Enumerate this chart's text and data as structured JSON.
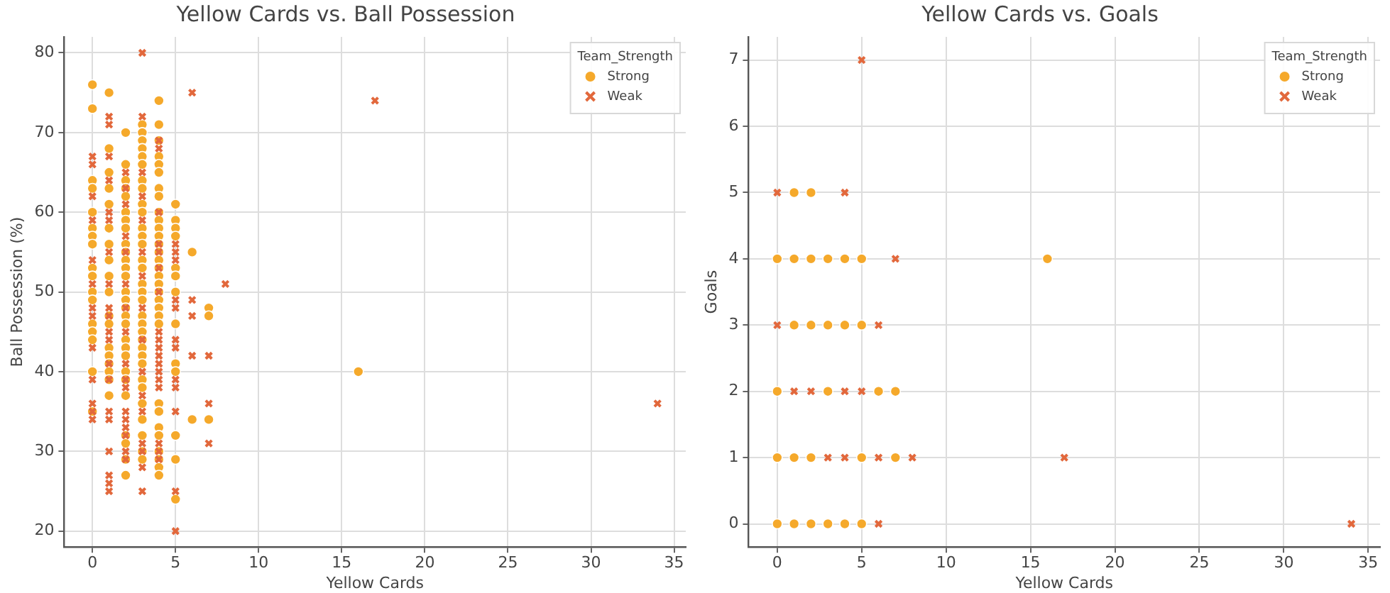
{
  "chart_data": [
    {
      "type": "scatter",
      "title": "Yellow Cards vs. Ball Possession",
      "xlabel": "Yellow Cards",
      "ylabel": "Ball Possession (%)",
      "legend_title": "Team_Strength",
      "legend": "top right",
      "grid": true,
      "xlim": [
        -1.7,
        35.7
      ],
      "xticks": [
        0,
        5,
        10,
        15,
        20,
        25,
        30,
        35
      ],
      "ylim": [
        18,
        82
      ],
      "yticks": [
        20,
        30,
        40,
        50,
        60,
        70,
        80
      ],
      "series": [
        {
          "name": "Strong",
          "color": "#f5a92b",
          "marker": "circle",
          "x": [
            0,
            0,
            0,
            0,
            0,
            0,
            0,
            0,
            0,
            0,
            0,
            0,
            0,
            0,
            0,
            0,
            0,
            1,
            1,
            1,
            1,
            1,
            1,
            1,
            1,
            1,
            1,
            1,
            1,
            1,
            1,
            1,
            1,
            1,
            1,
            2,
            2,
            2,
            2,
            2,
            2,
            2,
            2,
            2,
            2,
            2,
            2,
            2,
            2,
            2,
            2,
            2,
            2,
            2,
            2,
            2,
            2,
            2,
            2,
            2,
            2,
            2,
            2,
            3,
            3,
            3,
            3,
            3,
            3,
            3,
            3,
            3,
            3,
            3,
            3,
            3,
            3,
            3,
            3,
            3,
            3,
            3,
            3,
            3,
            3,
            3,
            3,
            3,
            3,
            3,
            3,
            3,
            3,
            3,
            3,
            4,
            4,
            4,
            4,
            4,
            4,
            4,
            4,
            4,
            4,
            4,
            4,
            4,
            4,
            4,
            4,
            4,
            4,
            4,
            4,
            4,
            4,
            4,
            4,
            4,
            4,
            4,
            4,
            4,
            4,
            4,
            5,
            5,
            5,
            5,
            5,
            5,
            5,
            5,
            5,
            5,
            5,
            5,
            5,
            6,
            6,
            7,
            7,
            7,
            16
          ],
          "values": [
            76,
            73,
            64,
            63,
            60,
            58,
            57,
            56,
            53,
            52,
            50,
            49,
            46,
            45,
            44,
            40,
            35,
            75,
            68,
            65,
            63,
            61,
            58,
            56,
            54,
            52,
            50,
            47,
            46,
            43,
            42,
            41,
            40,
            39,
            37,
            70,
            66,
            64,
            63,
            62,
            60,
            59,
            58,
            56,
            55,
            54,
            53,
            52,
            50,
            49,
            48,
            47,
            46,
            44,
            43,
            42,
            40,
            39,
            37,
            32,
            31,
            29,
            27,
            71,
            70,
            69,
            68,
            67,
            66,
            64,
            63,
            61,
            60,
            58,
            57,
            56,
            54,
            53,
            51,
            50,
            49,
            47,
            46,
            45,
            44,
            43,
            42,
            41,
            39,
            38,
            36,
            34,
            32,
            30,
            29,
            74,
            71,
            69,
            67,
            66,
            65,
            63,
            62,
            60,
            59,
            58,
            57,
            56,
            55,
            54,
            53,
            52,
            51,
            50,
            49,
            48,
            47,
            46,
            36,
            35,
            33,
            32,
            30,
            29,
            28,
            27,
            61,
            59,
            58,
            57,
            53,
            52,
            50,
            46,
            41,
            40,
            32,
            29,
            24,
            55,
            34,
            48,
            47,
            34,
            40
          ]
        },
        {
          "name": "Weak",
          "color": "#e2683c",
          "marker": "cross",
          "x": [
            0,
            0,
            0,
            0,
            0,
            0,
            0,
            0,
            0,
            0,
            0,
            0,
            0,
            1,
            1,
            1,
            1,
            1,
            1,
            1,
            1,
            1,
            1,
            1,
            1,
            1,
            1,
            1,
            1,
            1,
            1,
            1,
            1,
            2,
            2,
            2,
            2,
            2,
            2,
            2,
            2,
            2,
            2,
            2,
            2,
            2,
            2,
            2,
            2,
            2,
            3,
            3,
            3,
            3,
            3,
            3,
            3,
            3,
            3,
            3,
            3,
            3,
            3,
            3,
            3,
            3,
            4,
            4,
            4,
            4,
            4,
            4,
            4,
            4,
            4,
            4,
            4,
            4,
            4,
            4,
            4,
            4,
            4,
            4,
            5,
            5,
            5,
            5,
            5,
            5,
            5,
            5,
            5,
            5,
            5,
            5,
            6,
            6,
            6,
            6,
            7,
            7,
            7,
            8,
            17,
            34
          ],
          "values": [
            67,
            66,
            62,
            59,
            54,
            51,
            48,
            47,
            43,
            39,
            36,
            35,
            34,
            72,
            71,
            67,
            64,
            60,
            59,
            55,
            51,
            48,
            47,
            45,
            44,
            41,
            39,
            35,
            34,
            30,
            27,
            26,
            25,
            65,
            63,
            61,
            57,
            55,
            51,
            48,
            45,
            41,
            39,
            38,
            35,
            34,
            33,
            32,
            30,
            29,
            80,
            72,
            65,
            62,
            59,
            55,
            52,
            48,
            44,
            40,
            37,
            35,
            31,
            30,
            28,
            25,
            69,
            68,
            60,
            56,
            55,
            53,
            50,
            45,
            44,
            43,
            42,
            41,
            40,
            39,
            38,
            31,
            30,
            29,
            56,
            55,
            54,
            49,
            48,
            44,
            43,
            39,
            38,
            35,
            25,
            20,
            75,
            49,
            47,
            42,
            42,
            36,
            31,
            51,
            74,
            36
          ]
        }
      ]
    },
    {
      "type": "scatter",
      "title": "Yellow Cards vs. Goals",
      "xlabel": "Yellow Cards",
      "ylabel": "Goals",
      "legend_title": "Team_Strength",
      "legend": "top right",
      "grid": true,
      "xlim": [
        -1.7,
        35.7
      ],
      "xticks": [
        0,
        5,
        10,
        15,
        20,
        25,
        30,
        35
      ],
      "ylim": [
        -0.35,
        7.35
      ],
      "yticks": [
        0,
        1,
        2,
        3,
        4,
        5,
        6,
        7
      ],
      "series": [
        {
          "name": "Strong",
          "color": "#f5a92b",
          "marker": "circle",
          "x": [
            1,
            2,
            0,
            1,
            2,
            3,
            4,
            5,
            16,
            1,
            2,
            3,
            4,
            5,
            0,
            3,
            6,
            7,
            0,
            1,
            2,
            5,
            7,
            0,
            1,
            2,
            3,
            4,
            5
          ],
          "values": [
            5,
            5,
            4,
            4,
            4,
            4,
            4,
            4,
            4,
            3,
            3,
            3,
            3,
            3,
            2,
            2,
            2,
            2,
            1,
            1,
            1,
            1,
            1,
            0,
            0,
            0,
            0,
            0,
            0
          ]
        },
        {
          "name": "Weak",
          "color": "#e2683c",
          "marker": "cross",
          "x": [
            5,
            0,
            4,
            7,
            0,
            6,
            1,
            2,
            4,
            5,
            3,
            4,
            6,
            8,
            17,
            6,
            34
          ],
          "values": [
            7,
            5,
            5,
            4,
            3,
            3,
            2,
            2,
            2,
            2,
            1,
            1,
            1,
            1,
            1,
            0,
            0
          ]
        }
      ]
    }
  ]
}
